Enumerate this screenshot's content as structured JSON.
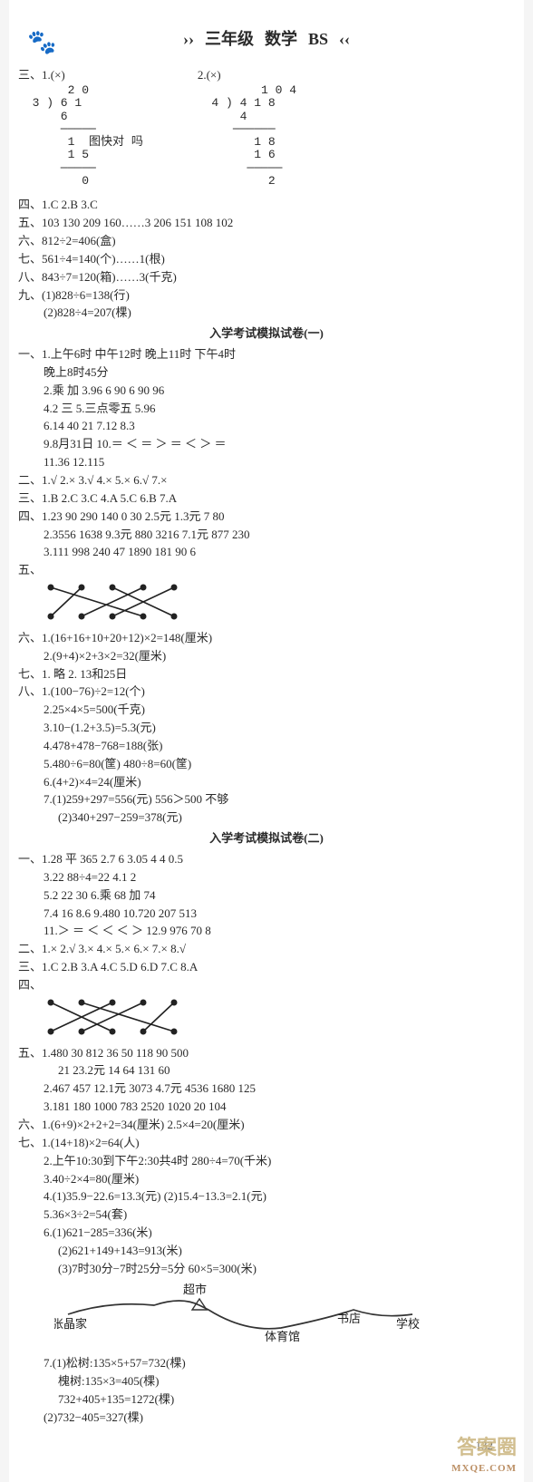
{
  "header": {
    "arrows_l": "››",
    "grade": "三年级",
    "subject": "数学",
    "code": "BS",
    "arrows_r": "‹‹"
  },
  "paw_glyph": "🐾",
  "sec3": {
    "label": "三、1.(×)",
    "label2": "2.(×)",
    "div1": "       2 0\n  3 ) 6 1\n      6\n      ─────\n       1  图快对 吗\n       1 5\n      ─────\n         0",
    "div2": "         1 0 4\n  4 ) 4 1 8\n      4\n     ──────\n        1 8\n        1 6\n       ─────\n          2"
  },
  "sec4": "四、1.C   2.B   3.C",
  "sec5": "五、103   130   209   160……3   206   151   108   102",
  "sec6": "六、812÷2=406(盒)",
  "sec7": "七、561÷4=140(个)……1(根)",
  "sec8": "八、843÷7=120(箱)……3(千克)",
  "sec9a": "九、(1)828÷6=138(行)",
  "sec9b": "(2)828÷4=207(棵)",
  "exam1": {
    "title": "入学考试模拟试卷(一)",
    "p1": {
      "l1": "一、1.上午6时   中午12时   晚上11时   下午4时",
      "l2": "晚上8时45分",
      "l3": "2.乘   加   3.96   6   90   6   90   96",
      "l4": "4.2   三   5.三点零五   5.96",
      "l5": "6.14   40   21   7.12   8.3",
      "l6": "9.8月31日   10.＝   ＜   ＝   ＞   ＝   ＜   ＞   ＝",
      "l7": "11.36   12.115"
    },
    "p2": "二、1.√   2.×   3.√   4.×   5.×   6.√   7.×",
    "p3": "三、1.B   2.C   3.C   4.A   5.C   6.B   7.A",
    "p4a": "四、1.23   90   290   140   0   30   2.5元   1.3元   7   80",
    "p4b": "2.3556   1638   9.3元   880   3216   7.1元   877   230",
    "p4c": "3.111   998   240   47   1890   181   90   6",
    "p5": "五、",
    "match": {
      "tops": 5,
      "lines": [
        [
          0,
          3
        ],
        [
          1,
          0
        ],
        [
          2,
          4
        ],
        [
          3,
          1
        ],
        [
          4,
          2
        ]
      ],
      "color": "#222"
    },
    "p6a": "六、1.(16+16+10+20+12)×2=148(厘米)",
    "p6b": "2.(9+4)×2+3×2=32(厘米)",
    "p7": "七、1. 略   2. 13和25日",
    "p8": {
      "l1": "八、1.(100−76)÷2=12(个)",
      "l2": "2.25×4×5=500(千克)",
      "l3": "3.10−(1.2+3.5)=5.3(元)",
      "l4": "4.478+478−768=188(张)",
      "l5": "5.480÷6=80(筐)   480÷8=60(筐)",
      "l6": "6.(4+2)×4=24(厘米)",
      "l7": "7.(1)259+297=556(元)   556＞500   不够",
      "l8": "(2)340+297−259=378(元)"
    }
  },
  "exam2": {
    "title": "入学考试模拟试卷(二)",
    "p1": {
      "l1": "一、1.28   平   365   2.7   6   3.05   4   4   0.5",
      "l2": "3.22   88÷4=22   4.1   2",
      "l3": "5.2   22   30   6.乘   68   加   74",
      "l4": "7.4   16   8.6   9.480   10.720   207   513",
      "l5": "11.＞   ＝   ＜   ＜   ＜   ＞ 12.9   976   70   8"
    },
    "p2": "二、1.×   2.√   3.×   4.×   5.×   6.×   7.×   8.√",
    "p3": "三、1.C   2.B   3.A   4.C   5.D   6.D   7.C   8.A",
    "p4": "四、",
    "match": {
      "tops": 5,
      "lines": [
        [
          0,
          2
        ],
        [
          1,
          4
        ],
        [
          2,
          0
        ],
        [
          3,
          1
        ],
        [
          4,
          3
        ]
      ],
      "color": "#222"
    },
    "p5a": "五、1.480   30   812   36   50   118   90   500",
    "p5b": "21   23.2元   14   64   131   60",
    "p5c": "2.467   457   12.1元   3073   4.7元   4536   1680   125",
    "p5d": "3.181   180   1000   783   2520   1020   20   104",
    "p6": "六、1.(6+9)×2+2+2=34(厘米)   2.5×4=20(厘米)",
    "p7": {
      "l1": "七、1.(14+18)×2=64(人)",
      "l2": "2.上午10:30到下午2:30共4时   280÷4=70(千米)",
      "l3": "3.40÷2×4=80(厘米)",
      "l4": "4.(1)35.9−22.6=13.3(元)   (2)15.4−13.3=2.1(元)",
      "l5": "5.36×3÷2=54(套)",
      "l6": "6.(1)621−285=336(米)",
      "l7": "(2)621+149+143=913(米)",
      "l8": "(3)7时30分−7时25分=5分   60×5=300(米)"
    },
    "map": {
      "labels": {
        "home": "张晶家",
        "market": "超市",
        "gym": "体育馆",
        "bookstore": "书店",
        "school": "学校"
      },
      "stroke": "#333"
    },
    "p7b": {
      "l1": "7.(1)松树:135×5+57=732(棵)",
      "l2": "槐树:135×3=405(棵)",
      "l3": "732+405+135=1272(棵)",
      "l4": "(2)732−405=327(棵)"
    }
  },
  "watermark": {
    "main": "答案圈",
    "sub": "MXQE.COM"
  },
  "page_num": "132"
}
